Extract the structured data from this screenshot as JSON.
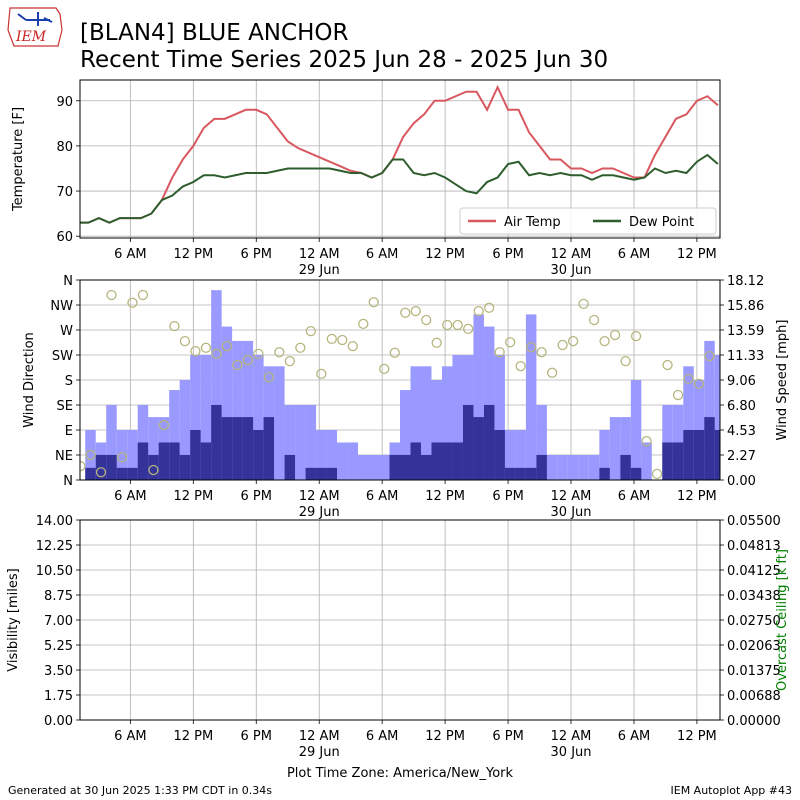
{
  "header": {
    "logo_text": "IEM",
    "title": "[BLAN4] BLUE ANCHOR",
    "subtitle": "Recent Time Series 2025 Jun 28 - 2025 Jun 30"
  },
  "footer": {
    "generated": "Generated at 30 Jun 2025 1:33 PM CDT in 0.34s",
    "app": "IEM Autoplot App #43"
  },
  "chart_data": [
    {
      "type": "line",
      "ylabel": "Temperature [F]",
      "grid": true,
      "legend": "lower right",
      "xlim": [
        1.2,
        62.2
      ],
      "xticks": [
        {
          "value": 6,
          "label": "6 AM"
        },
        {
          "value": 12,
          "label": "12 PM"
        },
        {
          "value": 18,
          "label": "6 PM"
        },
        {
          "value": 24,
          "label": "12 AM",
          "date": "29 Jun"
        },
        {
          "value": 30,
          "label": "6 AM"
        },
        {
          "value": 36,
          "label": "12 PM"
        },
        {
          "value": 42,
          "label": "6 PM"
        },
        {
          "value": 48,
          "label": "12 AM",
          "date": "30 Jun"
        },
        {
          "value": 54,
          "label": "6 AM"
        },
        {
          "value": 60,
          "label": "12 PM"
        }
      ],
      "ylim": [
        59.6,
        94.6
      ],
      "yticks": [
        60,
        70,
        80,
        90
      ],
      "x": [
        1.2,
        2,
        3,
        4,
        5,
        6,
        7,
        8,
        9,
        10,
        11,
        12,
        13,
        14,
        15,
        16,
        17,
        18,
        19,
        20,
        21,
        22,
        23,
        24,
        25,
        26,
        27,
        28,
        29,
        30,
        31,
        32,
        33,
        34,
        35,
        36,
        37,
        38,
        39,
        40,
        41,
        42,
        43,
        44,
        45,
        46,
        47,
        48,
        49,
        50,
        51,
        52,
        53,
        54,
        55,
        56,
        57,
        58,
        59,
        60,
        61,
        62
      ],
      "series": [
        {
          "name": "Air Temp",
          "color": "#d9585f",
          "values": [
            63,
            63,
            64,
            63,
            64,
            64,
            64,
            65,
            68,
            73,
            77,
            80,
            84,
            86,
            86,
            87,
            88,
            88,
            87,
            84,
            81,
            79.5,
            78.5,
            77.5,
            76.5,
            75.5,
            74.5,
            74,
            73,
            74,
            77,
            82,
            85,
            87,
            90,
            90,
            91,
            92,
            92,
            88,
            93,
            88,
            88,
            83,
            80,
            77,
            77,
            75,
            75,
            74,
            75,
            75,
            74,
            73,
            73,
            78,
            82,
            86,
            87,
            90,
            91,
            89
          ]
        },
        {
          "name": "Dew Point",
          "color": "#2e5e2e",
          "values": [
            63,
            63,
            64,
            63,
            64,
            64,
            64,
            65,
            68,
            69,
            71,
            72,
            73.5,
            73.5,
            73,
            73.5,
            74,
            74,
            74,
            74.5,
            75,
            75,
            75,
            75,
            75,
            74.5,
            74,
            74,
            73,
            74,
            77,
            77,
            74,
            73.5,
            74,
            73,
            71.5,
            70,
            69.5,
            72,
            73,
            76,
            76.5,
            73.5,
            74,
            73.5,
            74,
            73.5,
            73.5,
            72.5,
            73.5,
            73.5,
            73,
            72.5,
            73,
            75,
            74,
            74.5,
            74,
            76.5,
            78,
            76
          ]
        }
      ]
    },
    {
      "type": "bar",
      "ylabel": "Wind Direction",
      "y2label": "Wind Speed [mph]",
      "grid": true,
      "xlim": [
        1.2,
        62.2
      ],
      "xticks": [
        {
          "value": 6,
          "label": "6 AM"
        },
        {
          "value": 12,
          "label": "12 PM"
        },
        {
          "value": 18,
          "label": "6 PM"
        },
        {
          "value": 24,
          "label": "12 AM",
          "date": "29 Jun"
        },
        {
          "value": 30,
          "label": "6 AM"
        },
        {
          "value": 36,
          "label": "12 PM"
        },
        {
          "value": 42,
          "label": "6 PM"
        },
        {
          "value": 48,
          "label": "12 AM",
          "date": "30 Jun"
        },
        {
          "value": 54,
          "label": "6 AM"
        },
        {
          "value": 60,
          "label": "12 PM"
        }
      ],
      "ylim": [
        0,
        360
      ],
      "yticks": [
        {
          "value": 0,
          "label": "N"
        },
        {
          "value": 45,
          "label": "NE"
        },
        {
          "value": 90,
          "label": "E"
        },
        {
          "value": 135,
          "label": "SE"
        },
        {
          "value": 180,
          "label": "S"
        },
        {
          "value": 225,
          "label": "SW"
        },
        {
          "value": 270,
          "label": "W"
        },
        {
          "value": 315,
          "label": "NW"
        },
        {
          "value": 360,
          "label": "N"
        }
      ],
      "y2lim": [
        0,
        18.12
      ],
      "y2ticks": [
        {
          "value": 0,
          "label": "0.00"
        },
        {
          "value": 2.265,
          "label": "2.27"
        },
        {
          "value": 4.53,
          "label": "4.53"
        },
        {
          "value": 6.795,
          "label": "6.80"
        },
        {
          "value": 9.06,
          "label": "9.06"
        },
        {
          "value": 11.325,
          "label": "11.33"
        },
        {
          "value": 13.59,
          "label": "13.59"
        },
        {
          "value": 15.855,
          "label": "15.86"
        },
        {
          "value": 18.12,
          "label": "18.12"
        }
      ],
      "series": [
        {
          "type": "bar",
          "axis": "y2",
          "color": "#9999ff",
          "x": [
            2.2,
            3.2,
            4.2,
            5.2,
            6.2,
            7.2,
            8.2,
            9.2,
            10.2,
            11.2,
            12.2,
            13.2,
            14.2,
            15.2,
            16.2,
            17.2,
            18.2,
            19.2,
            20.2,
            21.2,
            22.2,
            23.2,
            24.2,
            25.2,
            26.2,
            27.2,
            28.2,
            29.2,
            30.2,
            31.2,
            32.2,
            33.2,
            34.2,
            35.2,
            36.2,
            37.2,
            38.2,
            39.2,
            40.2,
            41.2,
            42.2,
            43.2,
            44.2,
            45.2,
            46.2,
            47.2,
            48.2,
            49.2,
            50.2,
            51.2,
            52.2,
            53.2,
            54.2,
            55.2,
            56.2,
            57.2,
            58.2,
            59.2,
            60.2,
            61.2,
            62.2
          ],
          "values": [
            4.53,
            3.4,
            6.8,
            4.53,
            4.53,
            6.8,
            5.7,
            5.7,
            8.15,
            9.06,
            11.33,
            11.33,
            17.2,
            13.9,
            12.6,
            12.6,
            11.33,
            10.3,
            10.3,
            6.8,
            6.8,
            6.8,
            4.53,
            4.53,
            3.4,
            3.4,
            2.27,
            2.27,
            2.27,
            3.4,
            8.15,
            10.3,
            10.3,
            9.06,
            10.3,
            11.33,
            11.33,
            15,
            13.9,
            11.33,
            4.53,
            4.53,
            15,
            6.8,
            2.27,
            2.27,
            2.27,
            2.27,
            2.27,
            4.53,
            5.7,
            5.7,
            9.06,
            3.4,
            0,
            6.8,
            6.8,
            10.3,
            9.06,
            12.6,
            11.33
          ]
        },
        {
          "type": "bar",
          "axis": "y2",
          "color": "#333399",
          "x": [
            2.2,
            3.2,
            4.2,
            5.2,
            6.2,
            7.2,
            8.2,
            9.2,
            10.2,
            11.2,
            12.2,
            13.2,
            14.2,
            15.2,
            16.2,
            17.2,
            18.2,
            19.2,
            20.2,
            21.2,
            22.2,
            23.2,
            24.2,
            25.2,
            26.2,
            27.2,
            28.2,
            29.2,
            30.2,
            31.2,
            32.2,
            33.2,
            34.2,
            35.2,
            36.2,
            37.2,
            38.2,
            39.2,
            40.2,
            41.2,
            42.2,
            43.2,
            44.2,
            45.2,
            46.2,
            47.2,
            48.2,
            49.2,
            50.2,
            51.2,
            52.2,
            53.2,
            54.2,
            55.2,
            56.2,
            57.2,
            58.2,
            59.2,
            60.2,
            61.2,
            62.2
          ],
          "values": [
            1.1,
            2.27,
            2.27,
            1.1,
            1.1,
            3.4,
            2.27,
            3.4,
            3.4,
            2.27,
            4.53,
            3.4,
            6.8,
            5.7,
            5.7,
            5.7,
            4.53,
            5.7,
            0,
            2.27,
            0,
            1.1,
            1.1,
            1.1,
            0,
            0,
            0,
            0,
            0,
            2.27,
            2.27,
            3.4,
            2.27,
            3.4,
            3.4,
            3.4,
            6.8,
            5.7,
            6.8,
            4.53,
            1.1,
            1.1,
            1.1,
            2.27,
            0,
            0,
            0,
            0,
            0,
            1.1,
            0,
            2.27,
            1.1,
            0,
            0,
            3.4,
            3.4,
            4.53,
            4.53,
            5.7,
            4.53
          ]
        },
        {
          "type": "scatter",
          "color": "#b5b57d",
          "x": [
            1.24,
            2.2,
            3.2,
            4.2,
            5.2,
            6.2,
            7.2,
            8.2,
            9.2,
            10.2,
            11.2,
            12.2,
            13.2,
            14.2,
            15.2,
            16.2,
            17.2,
            18.2,
            19.2,
            20.2,
            21.2,
            22.2,
            23.2,
            24.2,
            25.2,
            26.2,
            27.2,
            28.2,
            29.2,
            30.2,
            31.2,
            32.2,
            33.2,
            34.2,
            35.2,
            36.2,
            37.2,
            38.2,
            39.2,
            40.2,
            41.2,
            42.2,
            43.2,
            44.2,
            45.2,
            46.2,
            47.2,
            48.2,
            49.2,
            50.2,
            51.2,
            52.2,
            53.2,
            54.2,
            55.2,
            56.2,
            57.2,
            58.2,
            59.2,
            60.2,
            61.2
          ],
          "values": [
            25,
            45,
            14,
            333,
            41,
            319,
            333,
            18,
            99,
            277,
            250,
            232,
            238,
            227,
            241,
            207,
            216,
            227,
            185,
            230,
            214,
            238,
            268,
            191,
            254,
            252,
            241,
            281,
            320,
            200,
            229,
            301,
            304,
            288,
            247,
            279,
            279,
            272,
            304,
            310,
            230,
            248,
            205,
            239,
            230,
            193,
            243,
            250,
            317,
            288,
            250,
            261,
            214,
            259,
            70,
            11,
            207,
            153,
            182,
            173,
            223
          ]
        }
      ]
    },
    {
      "type": "line",
      "ylabel": "Visibility [miles]",
      "y2label": "Overcast Ceiling [k ft]",
      "y2label_color": "#008000",
      "xlabel": "Plot Time Zone: America/New_York",
      "grid": true,
      "xlim": [
        1.2,
        62.2
      ],
      "xticks": [
        {
          "value": 6,
          "label": "6 AM"
        },
        {
          "value": 12,
          "label": "12 PM"
        },
        {
          "value": 18,
          "label": "6 PM"
        },
        {
          "value": 24,
          "label": "12 AM",
          "date": "29 Jun"
        },
        {
          "value": 30,
          "label": "6 AM"
        },
        {
          "value": 36,
          "label": "12 PM"
        },
        {
          "value": 42,
          "label": "6 PM"
        },
        {
          "value": 48,
          "label": "12 AM",
          "date": "30 Jun"
        },
        {
          "value": 54,
          "label": "6 AM"
        },
        {
          "value": 60,
          "label": "12 PM"
        }
      ],
      "ylim": [
        0,
        14
      ],
      "yticks": [
        {
          "value": 0,
          "label": "0.00"
        },
        1.75,
        {
          "value": 3.5,
          "label": "3.50"
        },
        5.25,
        {
          "value": 7,
          "label": "7.00"
        },
        8.75,
        {
          "value": 10.5,
          "label": "10.50"
        },
        12.25,
        {
          "value": 14,
          "label": "14.00"
        }
      ],
      "y2lim": [
        0,
        0.055
      ],
      "y2ticks": [
        {
          "value": 0,
          "label": "0.00000"
        },
        {
          "value": 0.006875,
          "label": "0.00688"
        },
        0.01375,
        {
          "value": 0.020625,
          "label": "0.02063"
        },
        {
          "value": 0.0275,
          "label": "0.02750"
        },
        {
          "value": 0.034375,
          "label": "0.03438"
        },
        0.04125,
        {
          "value": 0.048125,
          "label": "0.04813"
        },
        {
          "value": 0.055,
          "label": "0.05500"
        }
      ],
      "series": []
    }
  ]
}
